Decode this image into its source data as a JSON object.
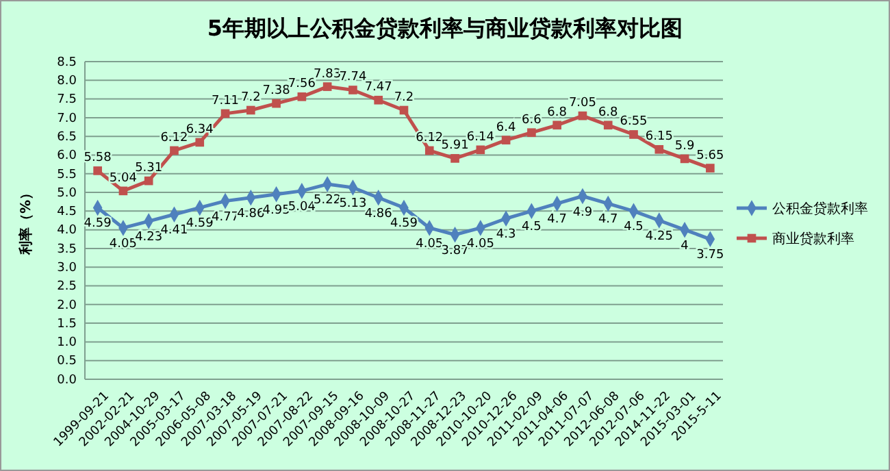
{
  "chart_data": {
    "type": "line",
    "title": "5年期以上公积金贷款利率与商业贷款利率对比图",
    "ylabel": "利率（%）",
    "categories": [
      "1999-09-21",
      "2002-02-21",
      "2004-10-29",
      "2005-03-17",
      "2006-05-08",
      "2007-03-18",
      "2007-05-19",
      "2007-07-21",
      "2007-08-22",
      "2007-09-15",
      "2008-09-16",
      "2008-10-09",
      "2008-10-27",
      "2008-11-27",
      "2008-12-23",
      "2010-10-20",
      "2010-12-26",
      "2011-02-09",
      "2011-04-06",
      "2011-07-07",
      "2012-06-08",
      "2012-07-06",
      "2014-11-22",
      "2015-03-01",
      "2015-5-11"
    ],
    "series": [
      {
        "name": "公积金贷款利率",
        "color": "#4f81bd",
        "marker": "diamond",
        "values": [
          4.59,
          4.05,
          4.23,
          4.41,
          4.59,
          4.77,
          4.86,
          4.95,
          5.04,
          5.22,
          5.13,
          4.86,
          4.59,
          4.05,
          3.87,
          4.05,
          4.3,
          4.5,
          4.7,
          4.9,
          4.7,
          4.5,
          4.25,
          4,
          3.75
        ]
      },
      {
        "name": "商业贷款利率",
        "color": "#c0504d",
        "marker": "square",
        "values": [
          5.58,
          5.04,
          5.31,
          6.12,
          6.34,
          7.11,
          7.2,
          7.38,
          7.56,
          7.83,
          7.74,
          7.47,
          7.2,
          6.12,
          5.91,
          6.14,
          6.4,
          6.6,
          6.8,
          7.05,
          6.8,
          6.55,
          6.15,
          5.9,
          5.65
        ]
      }
    ],
    "ylim": [
      0,
      8.5
    ],
    "yticks": [
      {
        "value": 0,
        "label": "0.0"
      },
      {
        "value": 0.5,
        "label": "0.5"
      },
      {
        "value": 1,
        "label": "1.0"
      },
      {
        "value": 1.5,
        "label": "1.5"
      },
      {
        "value": 2,
        "label": "2.0"
      },
      {
        "value": 2.5,
        "label": "2.5"
      },
      {
        "value": 3,
        "label": "3.0"
      },
      {
        "value": 3.5,
        "label": "3.5"
      },
      {
        "value": 4,
        "label": "4.0"
      },
      {
        "value": 4.5,
        "label": "4.5"
      },
      {
        "value": 5,
        "label": "5.0"
      },
      {
        "value": 5.5,
        "label": "5.5"
      },
      {
        "value": 6,
        "label": "6.0"
      },
      {
        "value": 6.5,
        "label": "6.5"
      },
      {
        "value": 7,
        "label": "7.0"
      },
      {
        "value": 7.5,
        "label": "7.5"
      },
      {
        "value": 8,
        "label": "8.0"
      },
      {
        "value": 8.5,
        "label": "8.5"
      }
    ],
    "grid": "y",
    "legend": "right",
    "data_labels": true
  }
}
